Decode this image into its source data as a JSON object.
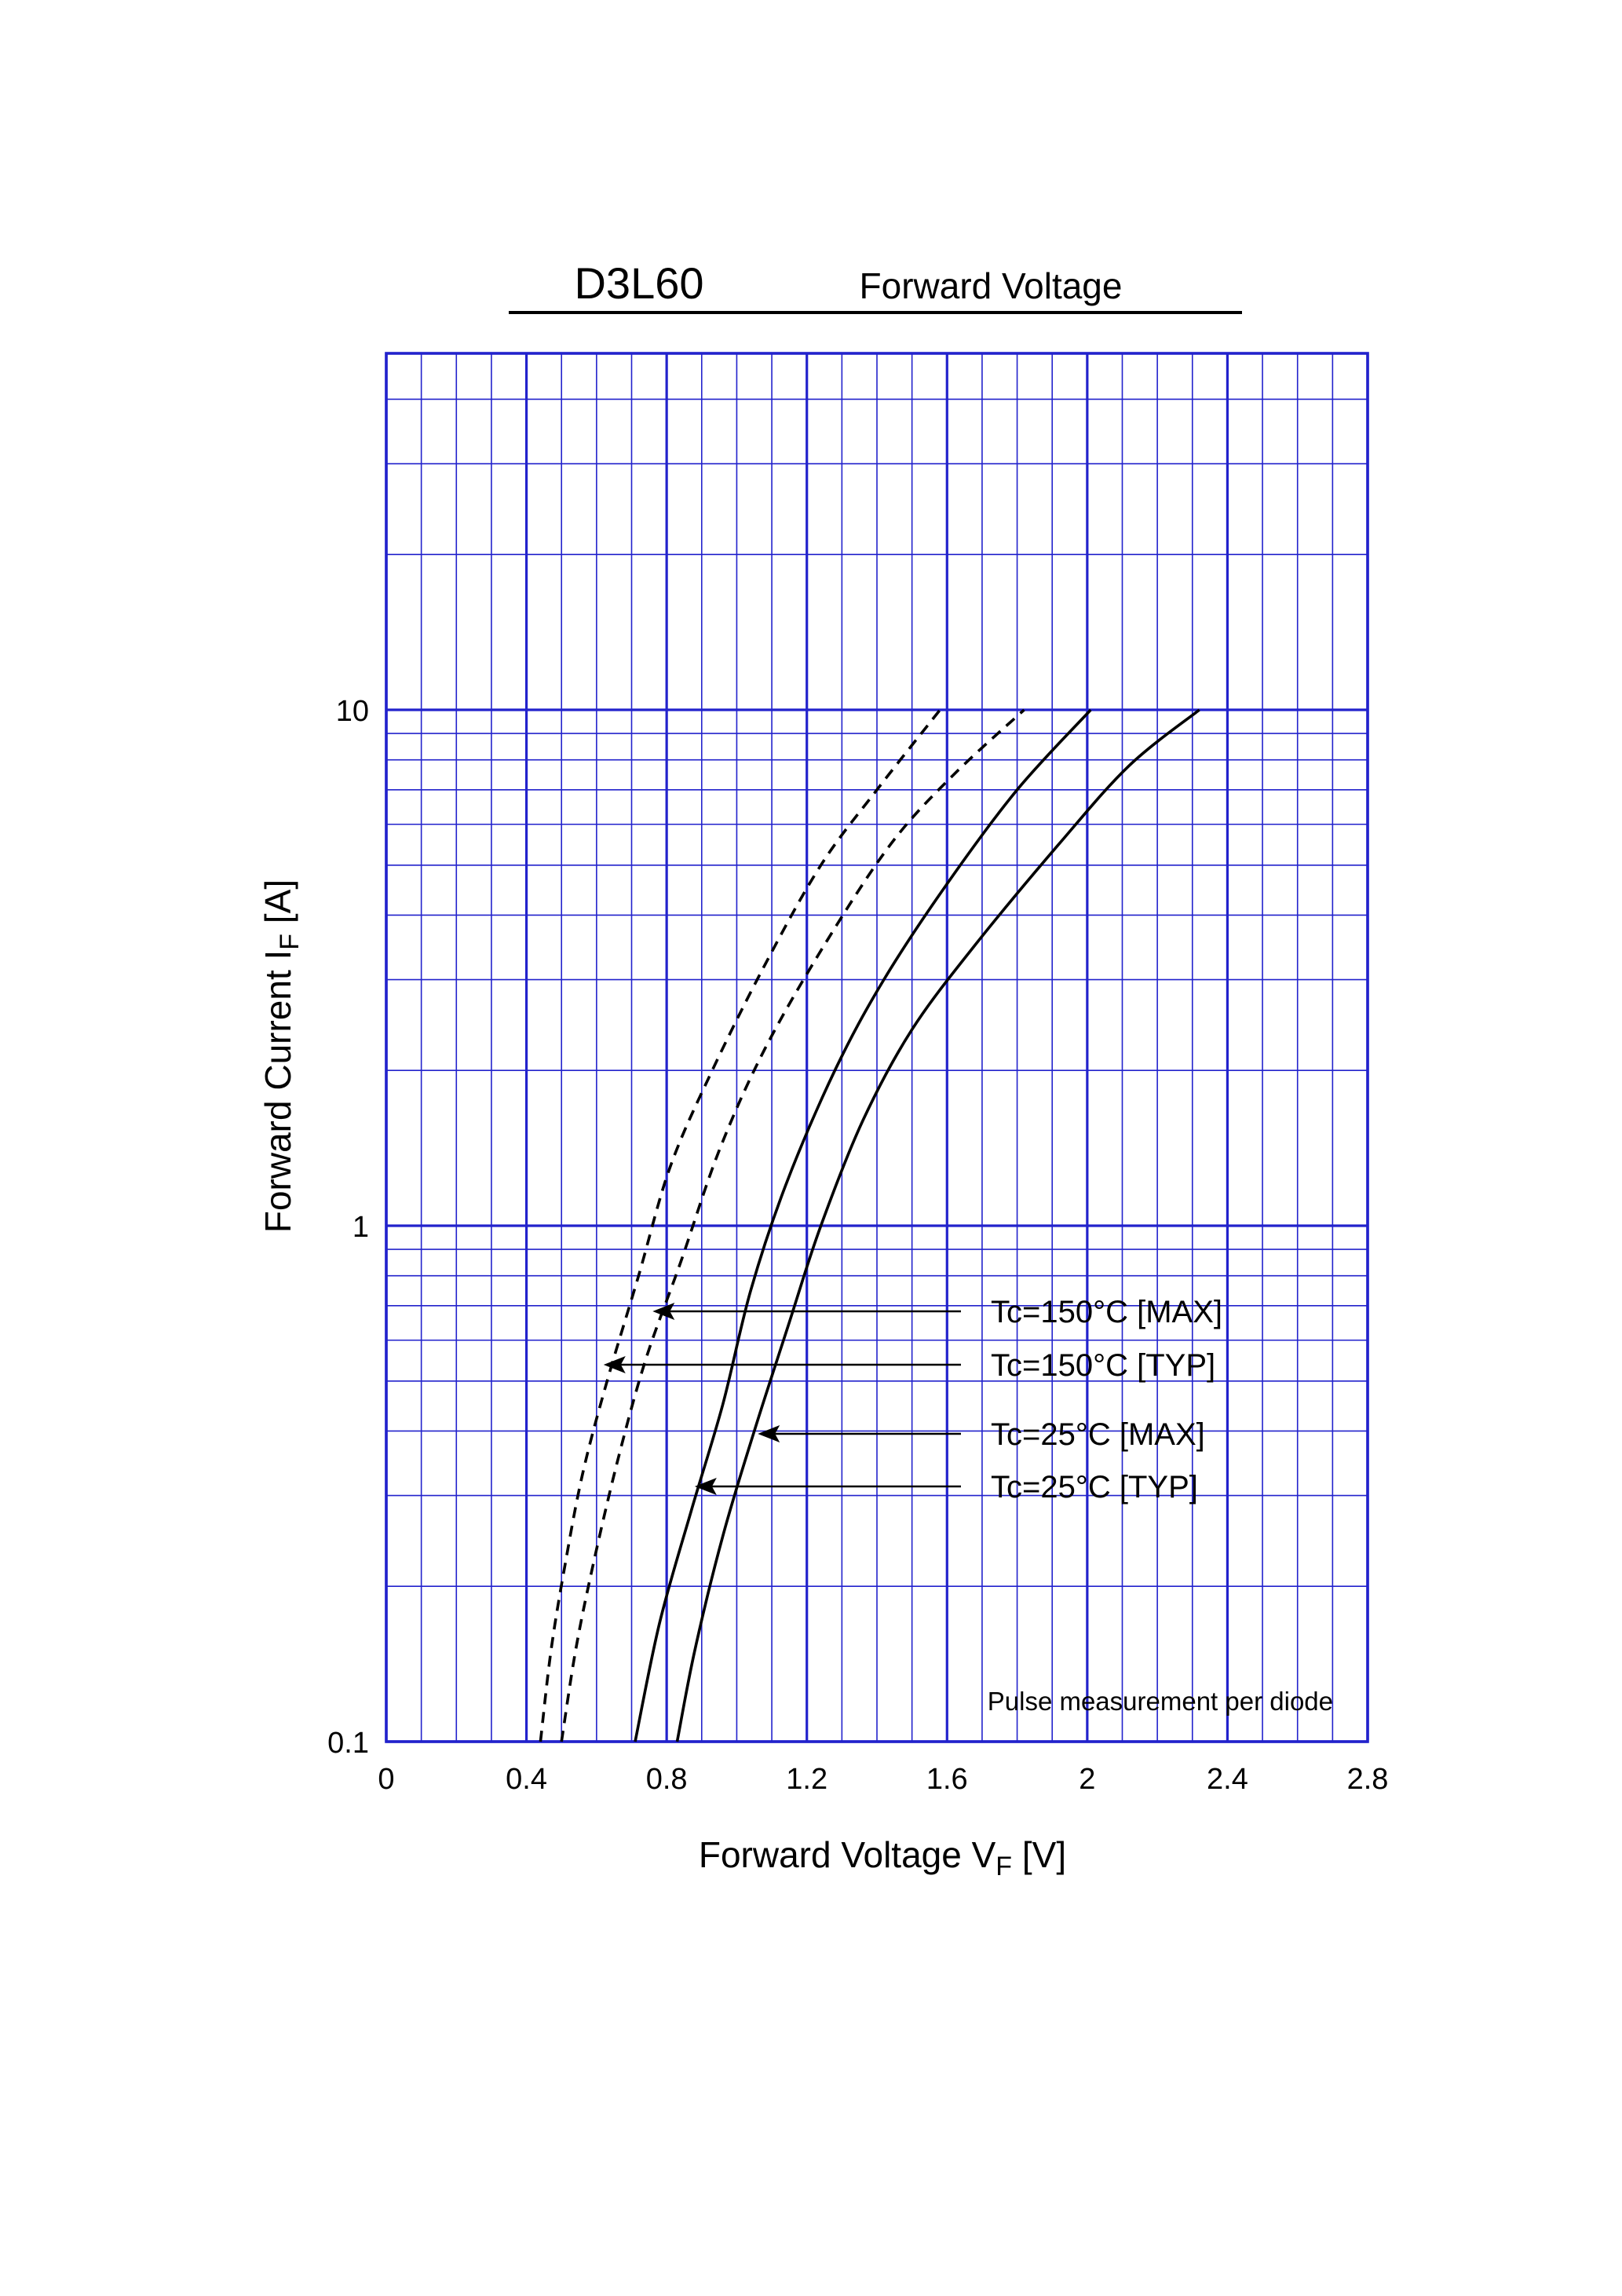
{
  "chart_data": {
    "type": "line",
    "title": "D3L60",
    "subtitle": "Forward Voltage",
    "xlabel": {
      "main": "Forward Voltage  V",
      "sub": "F",
      "unit": "  [V]"
    },
    "ylabel": {
      "main": "Forward Current  I",
      "sub": "F",
      "unit": "  [A]"
    },
    "xlim": [
      0,
      2.8
    ],
    "ylim": [
      0.1,
      50
    ],
    "yscale": "log",
    "grid": true,
    "x_ticks": [
      {
        "value": 0,
        "label": "0"
      },
      {
        "value": 0.4,
        "label": "0.4"
      },
      {
        "value": 0.8,
        "label": "0.8"
      },
      {
        "value": 1.2,
        "label": "1.2"
      },
      {
        "value": 1.6,
        "label": "1.6"
      },
      {
        "value": 2.0,
        "label": "2"
      },
      {
        "value": 2.4,
        "label": "2.4"
      },
      {
        "value": 2.8,
        "label": "2.8"
      }
    ],
    "y_ticks": [
      {
        "value": 0.1,
        "label": "0.1"
      },
      {
        "value": 1,
        "label": "1"
      },
      {
        "value": 10,
        "label": "10"
      }
    ],
    "note": "Pulse measurement per diode",
    "series": [
      {
        "name": "Tc=150°C [MAX]",
        "style": "dashed",
        "x": [
          0.44,
          0.47,
          0.51,
          0.56,
          0.63,
          0.72,
          0.81,
          0.93,
          1.08,
          1.24,
          1.4,
          1.58
        ],
        "y": [
          0.1,
          0.15,
          0.22,
          0.33,
          0.5,
          0.8,
          1.3,
          2.0,
          3.2,
          5.0,
          7.0,
          10
        ]
      },
      {
        "name": "Tc=150°C [TYP]",
        "style": "dashed",
        "x": [
          0.5,
          0.54,
          0.59,
          0.66,
          0.74,
          0.84,
          0.95,
          1.08,
          1.25,
          1.44,
          1.62,
          1.82
        ],
        "y": [
          0.1,
          0.15,
          0.22,
          0.35,
          0.55,
          0.85,
          1.4,
          2.2,
          3.5,
          5.5,
          7.5,
          10
        ]
      },
      {
        "name": "Tc=25°C [MAX]",
        "style": "solid",
        "x": [
          0.71,
          0.78,
          0.87,
          0.96,
          1.04,
          1.14,
          1.28,
          1.42,
          1.6,
          1.8,
          2.01
        ],
        "y": [
          0.1,
          0.17,
          0.28,
          0.45,
          0.75,
          1.2,
          2.0,
          3.0,
          4.6,
          7.0,
          10
        ]
      },
      {
        "name": "Tc=25°C [TYP]",
        "style": "solid",
        "x": [
          0.83,
          0.88,
          0.96,
          1.05,
          1.15,
          1.24,
          1.36,
          1.5,
          1.68,
          1.92,
          2.12,
          2.32
        ],
        "y": [
          0.1,
          0.15,
          0.25,
          0.4,
          0.65,
          1.0,
          1.6,
          2.4,
          3.5,
          5.5,
          7.8,
          10
        ]
      }
    ],
    "annotations": [
      {
        "text": "Tc=150°C [MAX]",
        "arrow_to": {
          "x": 0.76,
          "y": 0.65
        }
      },
      {
        "text": "Tc=150°C [TYP]",
        "arrow_to": {
          "x": 0.62,
          "y": 0.51
        }
      },
      {
        "text": "Tc=25°C [MAX]",
        "arrow_to": {
          "x": 1.06,
          "y": 0.375
        }
      },
      {
        "text": "Tc=25°C [TYP]",
        "arrow_to": {
          "x": 0.88,
          "y": 0.295
        }
      }
    ],
    "colors": {
      "grid": "#2222cc",
      "curves": "#000000"
    }
  }
}
